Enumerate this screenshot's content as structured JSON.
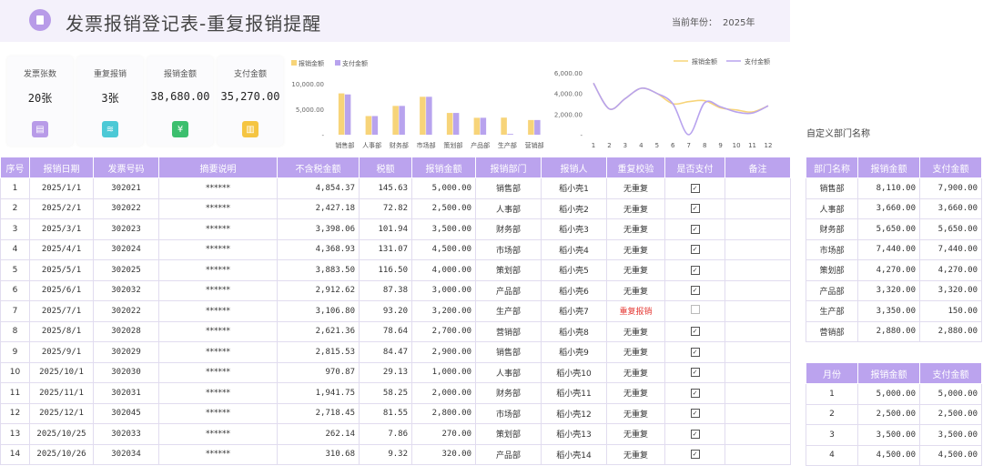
{
  "header": {
    "title": "发票报销登记表-重复报销提醒",
    "year_label": "当前年份：",
    "year_value": "2025年"
  },
  "stats": [
    {
      "label": "发票张数",
      "value": "20张",
      "icon": "document-icon",
      "color": "#b89be8"
    },
    {
      "label": "重复报销",
      "value": "3张",
      "icon": "layers-icon",
      "color": "#4cc9d6"
    },
    {
      "label": "报销金额",
      "value": "38,680.00",
      "icon": "yen-icon",
      "color": "#3cbf6e"
    },
    {
      "label": "支付金额",
      "value": "35,270.00",
      "icon": "note-icon",
      "color": "#f5c542"
    }
  ],
  "chart_data": [
    {
      "type": "bar",
      "categories": [
        "销售部",
        "人事部",
        "财务部",
        "市场部",
        "策划部",
        "产品部",
        "生产部",
        "营销部"
      ],
      "series": [
        {
          "name": "报销金额",
          "values": [
            8110,
            3660,
            5650,
            7440,
            4270,
            3320,
            3350,
            2880
          ],
          "color": "#f7d479"
        },
        {
          "name": "支付金额",
          "values": [
            7900,
            3660,
            5650,
            7440,
            4270,
            3320,
            150,
            2880
          ],
          "color": "#b8a3ee"
        }
      ],
      "yticks": [
        "10,000.00",
        "5,000.00",
        "-"
      ],
      "ylim": [
        0,
        10000
      ],
      "legend": "top-left"
    },
    {
      "type": "line",
      "x": [
        "1",
        "2",
        "3",
        "4",
        "5",
        "6",
        "7",
        "8",
        "9",
        "10",
        "11",
        "12"
      ],
      "series": [
        {
          "name": "报销金额",
          "values": [
            5000,
            2500,
            3500,
            4500,
            4000,
            3000,
            3200,
            3300,
            2600,
            2400,
            2200,
            2800
          ],
          "color": "#f7d479"
        },
        {
          "name": "支付金额",
          "values": [
            5000,
            2500,
            3500,
            4500,
            4000,
            3000,
            0,
            3100,
            2700,
            2200,
            2100,
            2800
          ],
          "color": "#b8a3ee"
        }
      ],
      "yticks": [
        "6,000.00",
        "4,000.00",
        "2,000.00",
        "-"
      ],
      "ylim": [
        0,
        6000
      ],
      "legend": "top-right"
    }
  ],
  "main_table": {
    "headers": [
      "序号",
      "报销日期",
      "发票号码",
      "摘要说明",
      "不含税金额",
      "税额",
      "报销金额",
      "报销部门",
      "报销人",
      "重复校验",
      "是否支付",
      "备注"
    ],
    "rows": [
      [
        "1",
        "2025/1/1",
        "302021",
        "******",
        "4,854.37",
        "145.63",
        "5,000.00",
        "销售部",
        "稻小壳1",
        "无重复",
        "paid",
        ""
      ],
      [
        "2",
        "2025/2/1",
        "302022",
        "******",
        "2,427.18",
        "72.82",
        "2,500.00",
        "人事部",
        "稻小壳2",
        "无重复",
        "paid",
        ""
      ],
      [
        "3",
        "2025/3/1",
        "302023",
        "******",
        "3,398.06",
        "101.94",
        "3,500.00",
        "财务部",
        "稻小壳3",
        "无重复",
        "paid",
        ""
      ],
      [
        "4",
        "2025/4/1",
        "302024",
        "******",
        "4,368.93",
        "131.07",
        "4,500.00",
        "市场部",
        "稻小壳4",
        "无重复",
        "paid",
        ""
      ],
      [
        "5",
        "2025/5/1",
        "302025",
        "******",
        "3,883.50",
        "116.50",
        "4,000.00",
        "策划部",
        "稻小壳5",
        "无重复",
        "paid",
        ""
      ],
      [
        "6",
        "2025/6/1",
        "302032",
        "******",
        "2,912.62",
        "87.38",
        "3,000.00",
        "产品部",
        "稻小壳6",
        "无重复",
        "paid",
        ""
      ],
      [
        "7",
        "2025/7/1",
        "302022",
        "******",
        "3,106.80",
        "93.20",
        "3,200.00",
        "生产部",
        "稻小壳7",
        "重复报销",
        "unpaid",
        ""
      ],
      [
        "8",
        "2025/8/1",
        "302028",
        "******",
        "2,621.36",
        "78.64",
        "2,700.00",
        "营销部",
        "稻小壳8",
        "无重复",
        "paid",
        ""
      ],
      [
        "9",
        "2025/9/1",
        "302029",
        "******",
        "2,815.53",
        "84.47",
        "2,900.00",
        "销售部",
        "稻小壳9",
        "无重复",
        "paid",
        ""
      ],
      [
        "10",
        "2025/10/1",
        "302030",
        "******",
        "970.87",
        "29.13",
        "1,000.00",
        "人事部",
        "稻小壳10",
        "无重复",
        "paid",
        ""
      ],
      [
        "11",
        "2025/11/1",
        "302031",
        "******",
        "1,941.75",
        "58.25",
        "2,000.00",
        "财务部",
        "稻小壳11",
        "无重复",
        "paid",
        ""
      ],
      [
        "12",
        "2025/12/1",
        "302045",
        "******",
        "2,718.45",
        "81.55",
        "2,800.00",
        "市场部",
        "稻小壳12",
        "无重复",
        "paid",
        ""
      ],
      [
        "13",
        "2025/10/25",
        "302033",
        "******",
        "262.14",
        "7.86",
        "270.00",
        "策划部",
        "稻小壳13",
        "无重复",
        "paid",
        ""
      ],
      [
        "14",
        "2025/10/26",
        "302034",
        "******",
        "310.68",
        "9.32",
        "320.00",
        "产品部",
        "稻小壳14",
        "无重复",
        "paid",
        ""
      ]
    ]
  },
  "side": {
    "custom_label": "自定义部门名称",
    "dept_table": {
      "headers": [
        "部门名称",
        "报销金额",
        "支付金额"
      ],
      "rows": [
        [
          "销售部",
          "8,110.00",
          "7,900.00"
        ],
        [
          "人事部",
          "3,660.00",
          "3,660.00"
        ],
        [
          "财务部",
          "5,650.00",
          "5,650.00"
        ],
        [
          "市场部",
          "7,440.00",
          "7,440.00"
        ],
        [
          "策划部",
          "4,270.00",
          "4,270.00"
        ],
        [
          "产品部",
          "3,320.00",
          "3,320.00"
        ],
        [
          "生产部",
          "3,350.00",
          "150.00"
        ],
        [
          "营销部",
          "2,880.00",
          "2,880.00"
        ]
      ]
    },
    "month_table": {
      "headers": [
        "月份",
        "报销金额",
        "支付金额"
      ],
      "rows": [
        [
          "1",
          "5,000.00",
          "5,000.00"
        ],
        [
          "2",
          "2,500.00",
          "2,500.00"
        ],
        [
          "3",
          "3,500.00",
          "3,500.00"
        ],
        [
          "4",
          "4,500.00",
          "4,500.00"
        ]
      ]
    }
  }
}
